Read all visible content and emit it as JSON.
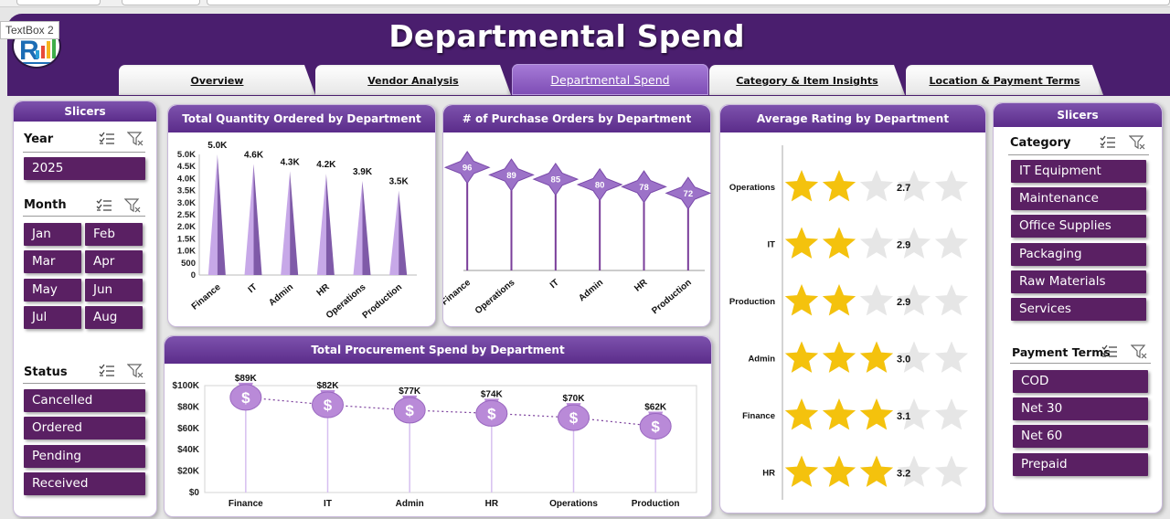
{
  "header": {
    "title": "Departmental Spend"
  },
  "textbox_label": "TextBox 2",
  "tabs": [
    {
      "label": "Overview",
      "active": false
    },
    {
      "label": "Vendor Analysis",
      "active": false
    },
    {
      "label": "Departmental Spend",
      "active": true
    },
    {
      "label": "Category & Item Insights",
      "active": false
    },
    {
      "label": "Location & Payment Terms",
      "active": false
    }
  ],
  "left_slicers": {
    "title": "Slicers",
    "year": {
      "label": "Year",
      "items": [
        "2025"
      ]
    },
    "month": {
      "label": "Month",
      "items": [
        "Jan",
        "Feb",
        "Mar",
        "Apr",
        "May",
        "Jun",
        "Jul",
        "Aug"
      ]
    },
    "status": {
      "label": "Status",
      "items": [
        "Cancelled",
        "Ordered",
        "Pending",
        "Received"
      ]
    }
  },
  "right_slicers": {
    "title": "Slicers",
    "category": {
      "label": "Category",
      "items": [
        "IT Equipment",
        "Maintenance",
        "Office Supplies",
        "Packaging",
        "Raw Materials",
        "Services"
      ]
    },
    "payment": {
      "label": "Payment Terms",
      "items": [
        "COD",
        "Net 30",
        "Net 60",
        "Prepaid"
      ]
    }
  },
  "colors": {
    "brand": "#4a1e6e",
    "accent": "#7d52ad",
    "slicer_button": "#5a2063",
    "star": "#f4c20d",
    "star_empty": "#e6e6e6"
  },
  "icons": {
    "multi_select": "multi-select-icon",
    "clear_filter": "clear-filter-icon"
  },
  "chart_data": [
    {
      "type": "bar",
      "title": "Total Quantity Ordered by Department",
      "categories": [
        "Finance",
        "IT",
        "Admin",
        "HR",
        "Operations",
        "Production"
      ],
      "values": [
        5000,
        4600,
        4300,
        4200,
        3900,
        3500
      ],
      "data_labels": [
        "5.0K",
        "4.6K",
        "4.3K",
        "4.2K",
        "3.9K",
        "3.5K"
      ],
      "ylim": [
        0,
        5000
      ],
      "yticks": [
        "0",
        "500",
        "1.0K",
        "1.5K",
        "2.0K",
        "2.5K",
        "3.0K",
        "3.5K",
        "4.0K",
        "4.5K",
        "5.0K"
      ],
      "xlabel": "",
      "ylabel": ""
    },
    {
      "type": "bar",
      "title": "# of Purchase Orders by Department",
      "categories": [
        "Finance",
        "Operations",
        "IT",
        "Admin",
        "HR",
        "Production"
      ],
      "values": [
        96,
        89,
        85,
        80,
        78,
        72
      ],
      "ylim": [
        0,
        120
      ]
    },
    {
      "type": "bar",
      "title": "Average Rating by Department",
      "categories": [
        "Operations",
        "IT",
        "Production",
        "Admin",
        "Finance",
        "HR"
      ],
      "values": [
        2.7,
        2.9,
        2.9,
        3.0,
        3.1,
        3.2
      ],
      "data_labels": [
        "2.7",
        "2.9",
        "2.9",
        "3.0",
        "3.1",
        "3.2"
      ],
      "max": 5
    },
    {
      "type": "line",
      "title": "Total Procurement Spend by Department",
      "categories": [
        "Finance",
        "IT",
        "Admin",
        "HR",
        "Operations",
        "Production"
      ],
      "values": [
        89000,
        82000,
        77000,
        74000,
        70000,
        62000
      ],
      "data_labels": [
        "$89K",
        "$82K",
        "$77K",
        "$74K",
        "$70K",
        "$62K"
      ],
      "ylim": [
        0,
        100000
      ],
      "yticks": [
        "$0",
        "$20K",
        "$40K",
        "$60K",
        "$80K",
        "$100K"
      ]
    }
  ]
}
